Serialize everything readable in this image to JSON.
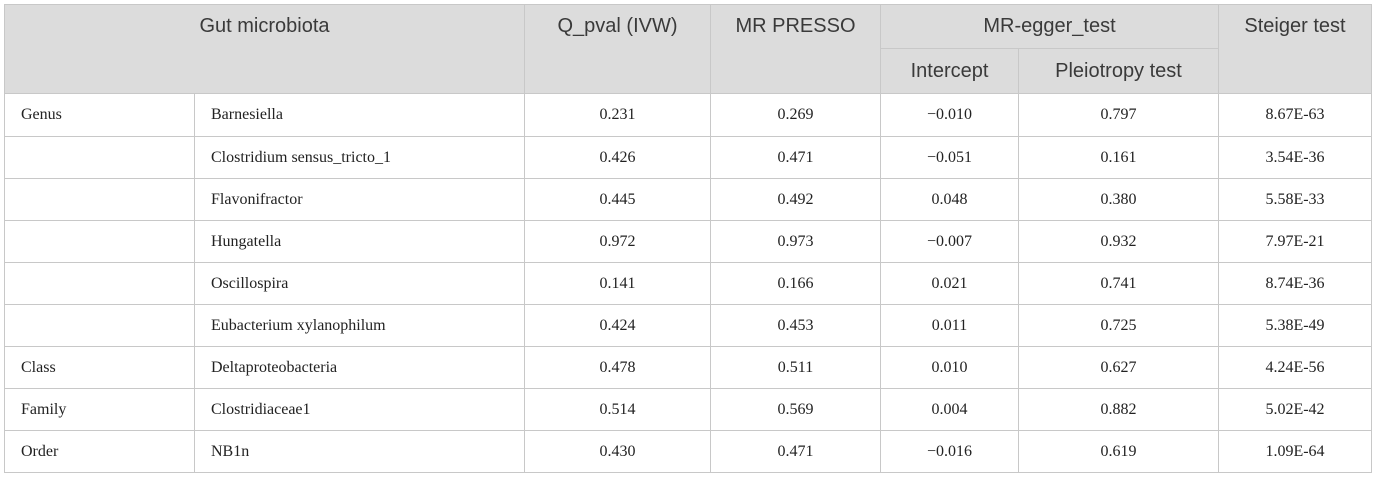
{
  "header": {
    "gut_microbiota": "Gut microbiota",
    "q_pval": "Q_pval (IVW)",
    "mr_presso": "MR PRESSO",
    "mr_egger_test": "MR-egger_test",
    "intercept": "Intercept",
    "pleiotropy_test": "Pleiotropy test",
    "steiger_test": "Steiger test"
  },
  "rows": [
    {
      "rank": "Genus",
      "taxon": "Barnesiella",
      "q_pval": "0.231",
      "mr_presso": "0.269",
      "intercept": "−0.010",
      "pleiotropy": "0.797",
      "steiger": "8.67E-63"
    },
    {
      "rank": "",
      "taxon": "Clostridium sensus_tricto_1",
      "q_pval": "0.426",
      "mr_presso": "0.471",
      "intercept": "−0.051",
      "pleiotropy": "0.161",
      "steiger": "3.54E-36"
    },
    {
      "rank": "",
      "taxon": "Flavonifractor",
      "q_pval": "0.445",
      "mr_presso": "0.492",
      "intercept": "0.048",
      "pleiotropy": "0.380",
      "steiger": "5.58E-33"
    },
    {
      "rank": "",
      "taxon": "Hungatella",
      "q_pval": "0.972",
      "mr_presso": "0.973",
      "intercept": "−0.007",
      "pleiotropy": "0.932",
      "steiger": "7.97E-21"
    },
    {
      "rank": "",
      "taxon": "Oscillospira",
      "q_pval": "0.141",
      "mr_presso": "0.166",
      "intercept": "0.021",
      "pleiotropy": "0.741",
      "steiger": "8.74E-36"
    },
    {
      "rank": "",
      "taxon": "Eubacterium xylanophilum",
      "q_pval": "0.424",
      "mr_presso": "0.453",
      "intercept": "0.011",
      "pleiotropy": "0.725",
      "steiger": "5.38E-49"
    },
    {
      "rank": "Class",
      "taxon": "Deltaproteobacteria",
      "q_pval": "0.478",
      "mr_presso": "0.511",
      "intercept": "0.010",
      "pleiotropy": "0.627",
      "steiger": "4.24E-56"
    },
    {
      "rank": "Family",
      "taxon": "Clostridiaceae1",
      "q_pval": "0.514",
      "mr_presso": "0.569",
      "intercept": "0.004",
      "pleiotropy": "0.882",
      "steiger": "5.02E-42"
    },
    {
      "rank": "Order",
      "taxon": "NB1n",
      "q_pval": "0.430",
      "mr_presso": "0.471",
      "intercept": "−0.016",
      "pleiotropy": "0.619",
      "steiger": "1.09E-64"
    }
  ]
}
